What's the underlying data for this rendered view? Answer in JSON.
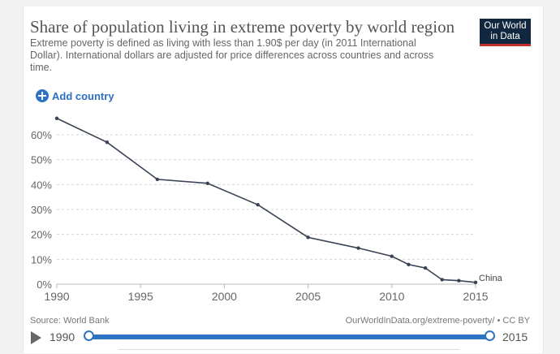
{
  "header": {
    "title": "Share of population living in extreme poverty by world region",
    "subtitle": "Extreme poverty is defined as living with less than 1.90$ per day (in 2011 International Dollar). International dollars are adjusted for price differences across countries and across time.",
    "logo_line1": "Our World",
    "logo_line2": "in Data"
  },
  "controls": {
    "add_country_label": "Add country",
    "add_icon": "plus-circle-icon"
  },
  "footer": {
    "source": "Source: World Bank",
    "license": "OurWorldInData.org/extreme-poverty/ • CC BY"
  },
  "timeline": {
    "start_label": "1990",
    "end_label": "2015",
    "play_icon": "play-icon",
    "start_value": 1990,
    "end_value": 2015
  },
  "colors": {
    "series": "#3a4256",
    "accent": "#2f74c4",
    "logo_bg": "#10273f",
    "logo_underline": "#c0312d"
  },
  "chart_data": {
    "type": "line",
    "title": "Share of population living in extreme poverty by world region",
    "xlabel": "",
    "ylabel": "",
    "xlim": [
      1990,
      2015
    ],
    "ylim": [
      0,
      60
    ],
    "x_ticks": [
      1990,
      1995,
      2000,
      2005,
      2010,
      2015
    ],
    "x_tick_labels": [
      "1990",
      "1995",
      "2000",
      "2005",
      "2010",
      "2015"
    ],
    "y_ticks": [
      0,
      10,
      20,
      30,
      40,
      50,
      60
    ],
    "y_tick_labels": [
      "0%",
      "10%",
      "20%",
      "30%",
      "40%",
      "50%",
      "60%"
    ],
    "grid": "horizontal-dashed",
    "series": [
      {
        "name": "China",
        "x": [
          1990,
          1993,
          1996,
          1999,
          2002,
          2005,
          2008,
          2010,
          2011,
          2012,
          2013,
          2014,
          2015
        ],
        "values": [
          66.6,
          57.0,
          42.1,
          40.5,
          31.9,
          18.8,
          14.5,
          11.2,
          7.9,
          6.5,
          1.8,
          1.4,
          0.7
        ]
      }
    ]
  }
}
